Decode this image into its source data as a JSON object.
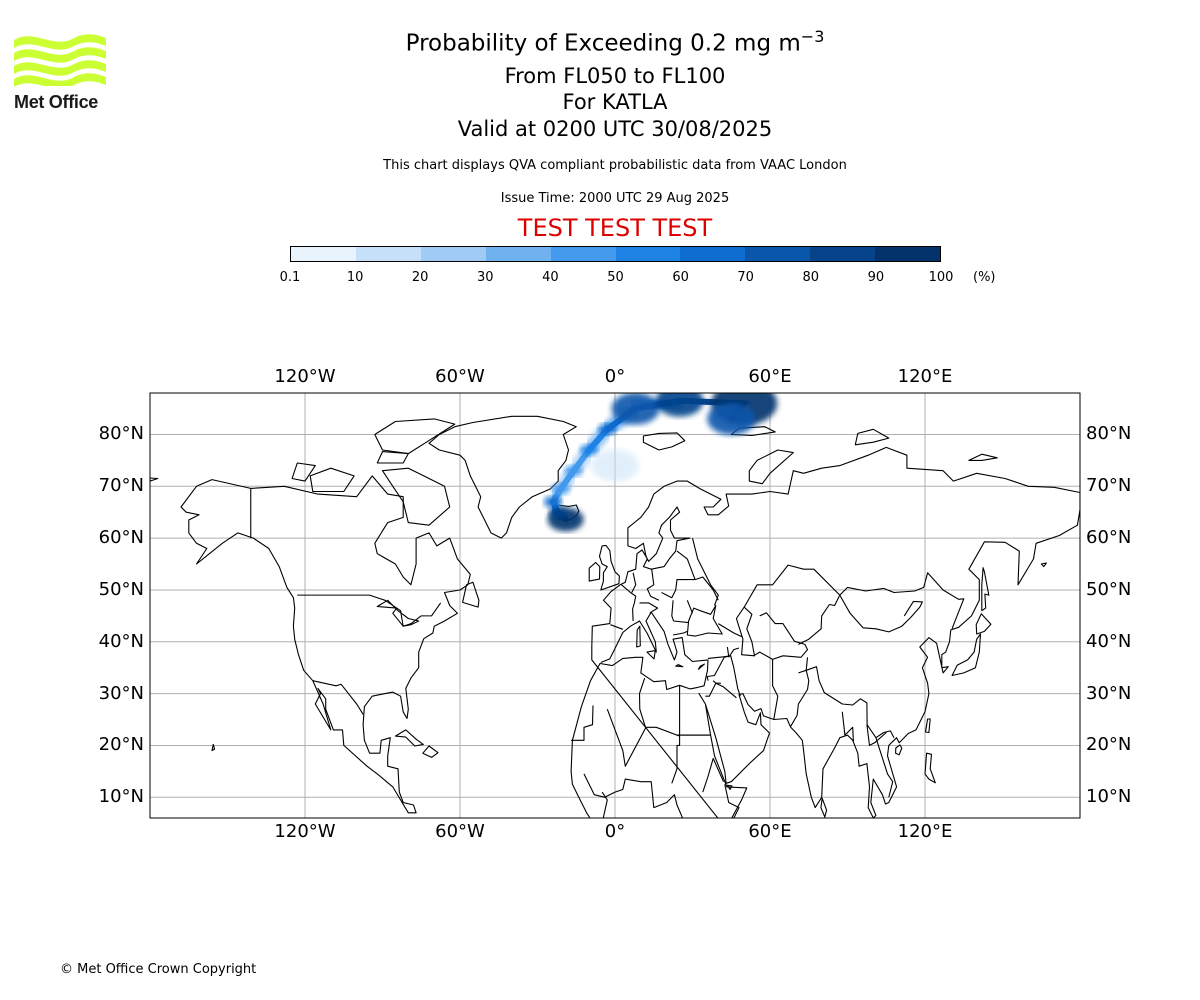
{
  "logo": {
    "text": "Met Office",
    "color": "#ccff33"
  },
  "title": {
    "line1_prefix": "Probability of Exceeding 0.2 mg m",
    "line1_superscript": "−3",
    "line2": "From FL050 to FL100",
    "line3": "For KATLA",
    "line4": "Valid at 0200 UTC 30/08/2025"
  },
  "subtitle": "This chart displays QVA compliant probabilistic data from VAAC London",
  "issue_time": "Issue Time: 2000 UTC 29 Aug 2025",
  "test_banner": "TEST TEST TEST",
  "test_banner_color": "#dd0000",
  "colorbar": {
    "unit": "(%)",
    "tick_labels": [
      "0.1",
      "10",
      "20",
      "30",
      "40",
      "50",
      "60",
      "70",
      "80",
      "90",
      "100"
    ],
    "colors": [
      "#e8f3fc",
      "#c5e0f8",
      "#9fcbf4",
      "#70b2f0",
      "#4399ec",
      "#1f83e6",
      "#0f6cd0",
      "#0a56ab",
      "#06438b",
      "#04336c"
    ]
  },
  "map": {
    "projection": "plate-carree",
    "lon_range": [
      -180,
      180
    ],
    "lat_range": [
      6,
      88
    ],
    "lon_ticks": [
      "120°W",
      "60°W",
      "0°",
      "60°E",
      "120°E"
    ],
    "lat_ticks": [
      "10°N",
      "20°N",
      "30°N",
      "40°N",
      "50°N",
      "60°N",
      "70°N",
      "80°N"
    ],
    "grid": true,
    "volcano": "KATLA",
    "plume_points": [
      {
        "lon": -19.1,
        "lat": 63.6,
        "prob": 90
      },
      {
        "lon": -22.0,
        "lat": 64.8,
        "prob": 80
      },
      {
        "lon": -24.0,
        "lat": 67.0,
        "prob": 60
      },
      {
        "lon": -21.0,
        "lat": 69.5,
        "prob": 40
      },
      {
        "lon": -16.0,
        "lat": 73.0,
        "prob": 40
      },
      {
        "lon": -10.0,
        "lat": 77.0,
        "prob": 50
      },
      {
        "lon": -3.0,
        "lat": 81.0,
        "prob": 60
      },
      {
        "lon": 8.0,
        "lat": 85.0,
        "prob": 70
      },
      {
        "lon": 25.0,
        "lat": 86.5,
        "prob": 80
      },
      {
        "lon": 50.0,
        "lat": 86.0,
        "prob": 95
      },
      {
        "lon": 45.0,
        "lat": 83.0,
        "prob": 70
      },
      {
        "lon": 0.0,
        "lat": 74.0,
        "prob": 15
      }
    ]
  },
  "footer": "© Met Office Crown Copyright"
}
